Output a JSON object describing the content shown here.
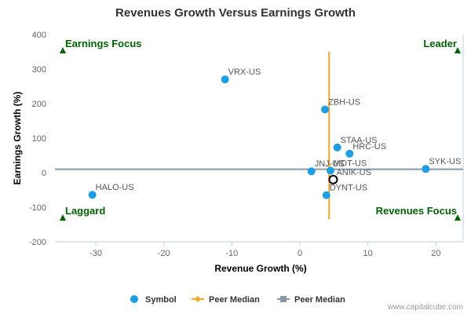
{
  "chart_data": {
    "type": "scatter",
    "title": "Revenues Growth Versus Earnings Growth",
    "xlabel": "Revenue Growth (%)",
    "ylabel": "Earnings Growth (%)",
    "xlim": [
      -36,
      24
    ],
    "ylim": [
      -200,
      400
    ],
    "x_ticks": [
      -30,
      -20,
      -10,
      0,
      10,
      20
    ],
    "y_ticks": [
      -200,
      -100,
      0,
      100,
      200,
      300,
      400
    ],
    "points": [
      {
        "label": "VRX-US",
        "x": -11,
        "y": 270
      },
      {
        "label": "ZBH-US",
        "x": 3.7,
        "y": 183
      },
      {
        "label": "STAA-US",
        "x": 5.5,
        "y": 73
      },
      {
        "label": "HRC-US",
        "x": 7.3,
        "y": 55
      },
      {
        "label": "SYK-US",
        "x": 18.5,
        "y": 11
      },
      {
        "label": "JNJ-US",
        "x": 1.7,
        "y": 4
      },
      {
        "label": "MDT-US",
        "x": 4.5,
        "y": 6
      },
      {
        "label": "HALO-US",
        "x": -30.5,
        "y": -64
      },
      {
        "label": "DYNT-US",
        "x": 3.9,
        "y": -65
      }
    ],
    "highlight": {
      "label": "ANIK-US",
      "x": 4.9,
      "y": -20
    },
    "peer_median_x": 4.3,
    "peer_median_y": 10,
    "quadrants": {
      "top_left": "Earnings Focus",
      "top_right": "Leader",
      "bottom_left": "Laggard",
      "bottom_right": "Revenues Focus"
    },
    "legend": {
      "placement": "bottom",
      "items": [
        {
          "label": "Symbol",
          "color": "#1b9ee6",
          "marker": "circle"
        },
        {
          "label": "Peer Median",
          "color": "#f5a623",
          "marker": "diamond-line"
        },
        {
          "label": "Peer Median",
          "color": "#8a99a8",
          "marker": "square-line"
        }
      ]
    },
    "colors": {
      "point": "#1b9ee6",
      "vertical_median": "#f5a623",
      "horizontal_median": "#8a99a8",
      "quadrant_text": "#006400"
    }
  },
  "credit": "www.capitalcube.com"
}
